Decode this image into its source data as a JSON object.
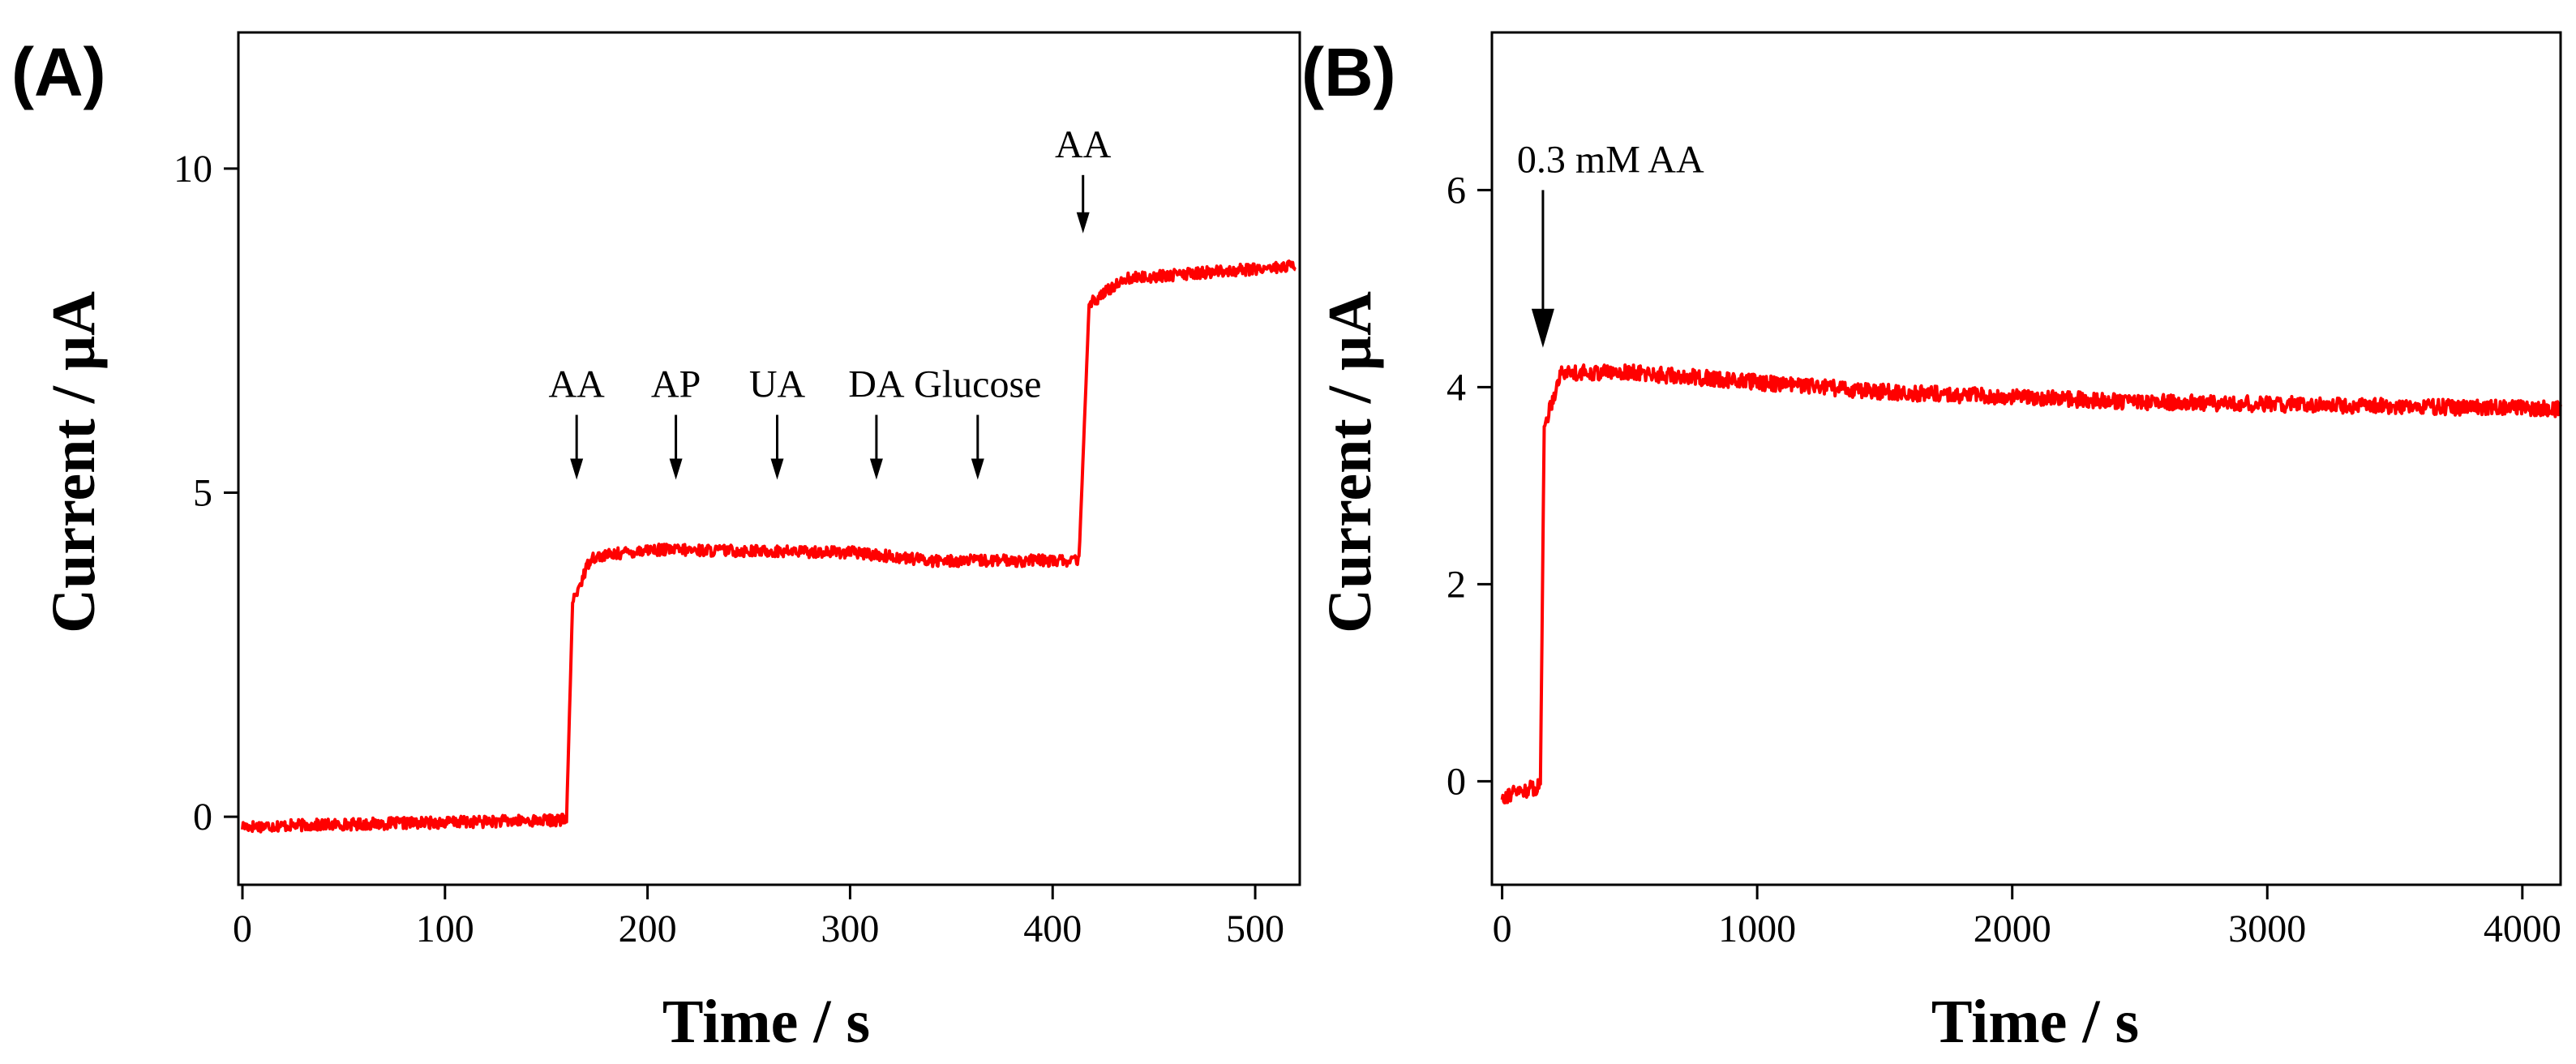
{
  "chart_data": [
    {
      "panel": "(A)",
      "type": "line",
      "title": "",
      "xlabel": "Time / s",
      "ylabel": "Current / μA",
      "xlim": [
        -2,
        522
      ],
      "ylim": [
        -1.05,
        12.1
      ],
      "xticks": [
        0,
        100,
        200,
        300,
        400,
        500
      ],
      "yticks": [
        0,
        5,
        10
      ],
      "grid": false,
      "color": "#ff0000",
      "noise": 0.09,
      "segments": [
        {
          "x0": 0,
          "x1": 160,
          "y0": -0.15,
          "y1": -0.05
        },
        {
          "x0": 160,
          "x1": 163,
          "y0": -0.05,
          "y1": 3.3
        },
        {
          "x0": 163,
          "x1": 172,
          "y0": 3.3,
          "y1": 4.0
        },
        {
          "x0": 172,
          "x1": 200,
          "y0": 4.0,
          "y1": 4.12
        },
        {
          "x0": 200,
          "x1": 300,
          "y0": 4.12,
          "y1": 4.08
        },
        {
          "x0": 300,
          "x1": 340,
          "y0": 4.08,
          "y1": 3.95
        },
        {
          "x0": 340,
          "x1": 413,
          "y0": 3.95,
          "y1": 3.95
        },
        {
          "x0": 413,
          "x1": 418,
          "y0": 3.95,
          "y1": 7.9
        },
        {
          "x0": 418,
          "x1": 435,
          "y0": 7.9,
          "y1": 8.3
        },
        {
          "x0": 435,
          "x1": 520,
          "y0": 8.3,
          "y1": 8.5
        }
      ],
      "annotations": [
        {
          "text": "AA",
          "x": 165,
          "arrow_y_top": 6.2,
          "arrow_y_bottom": 5.2
        },
        {
          "text": "AP",
          "x": 214,
          "arrow_y_top": 6.2,
          "arrow_y_bottom": 5.2
        },
        {
          "text": "UA",
          "x": 264,
          "arrow_y_top": 6.2,
          "arrow_y_bottom": 5.2
        },
        {
          "text": "DA",
          "x": 313,
          "arrow_y_top": 6.2,
          "arrow_y_bottom": 5.2
        },
        {
          "text": "Glucose",
          "x": 363,
          "arrow_y_top": 6.2,
          "arrow_y_bottom": 5.2
        },
        {
          "text": "AA",
          "x": 415,
          "arrow_y_top": 9.9,
          "arrow_y_bottom": 9.0
        }
      ]
    },
    {
      "panel": "(B)",
      "type": "line",
      "title": "",
      "xlabel": "Time / s",
      "ylabel": "Current / μA",
      "xlim": [
        -40,
        4150
      ],
      "ylim": [
        -1.05,
        7.6
      ],
      "xticks": [
        0,
        1000,
        2000,
        3000,
        4000
      ],
      "yticks": [
        0,
        2,
        4,
        6
      ],
      "grid": false,
      "color": "#ff0000",
      "noise": 0.08,
      "segments": [
        {
          "x0": 0,
          "x1": 150,
          "y0": -0.15,
          "y1": -0.05
        },
        {
          "x0": 150,
          "x1": 165,
          "y0": -0.05,
          "y1": 3.6
        },
        {
          "x0": 165,
          "x1": 230,
          "y0": 3.6,
          "y1": 4.15
        },
        {
          "x0": 230,
          "x1": 500,
          "y0": 4.15,
          "y1": 4.15
        },
        {
          "x0": 500,
          "x1": 1500,
          "y0": 4.15,
          "y1": 3.95
        },
        {
          "x0": 1500,
          "x1": 2500,
          "y0": 3.95,
          "y1": 3.85
        },
        {
          "x0": 2500,
          "x1": 4150,
          "y0": 3.85,
          "y1": 3.78
        }
      ],
      "annotations": [
        {
          "text": "0.3 mM AA",
          "x": 160,
          "arrow_y_top": 6.0,
          "arrow_y_bottom": 4.4
        }
      ]
    }
  ]
}
